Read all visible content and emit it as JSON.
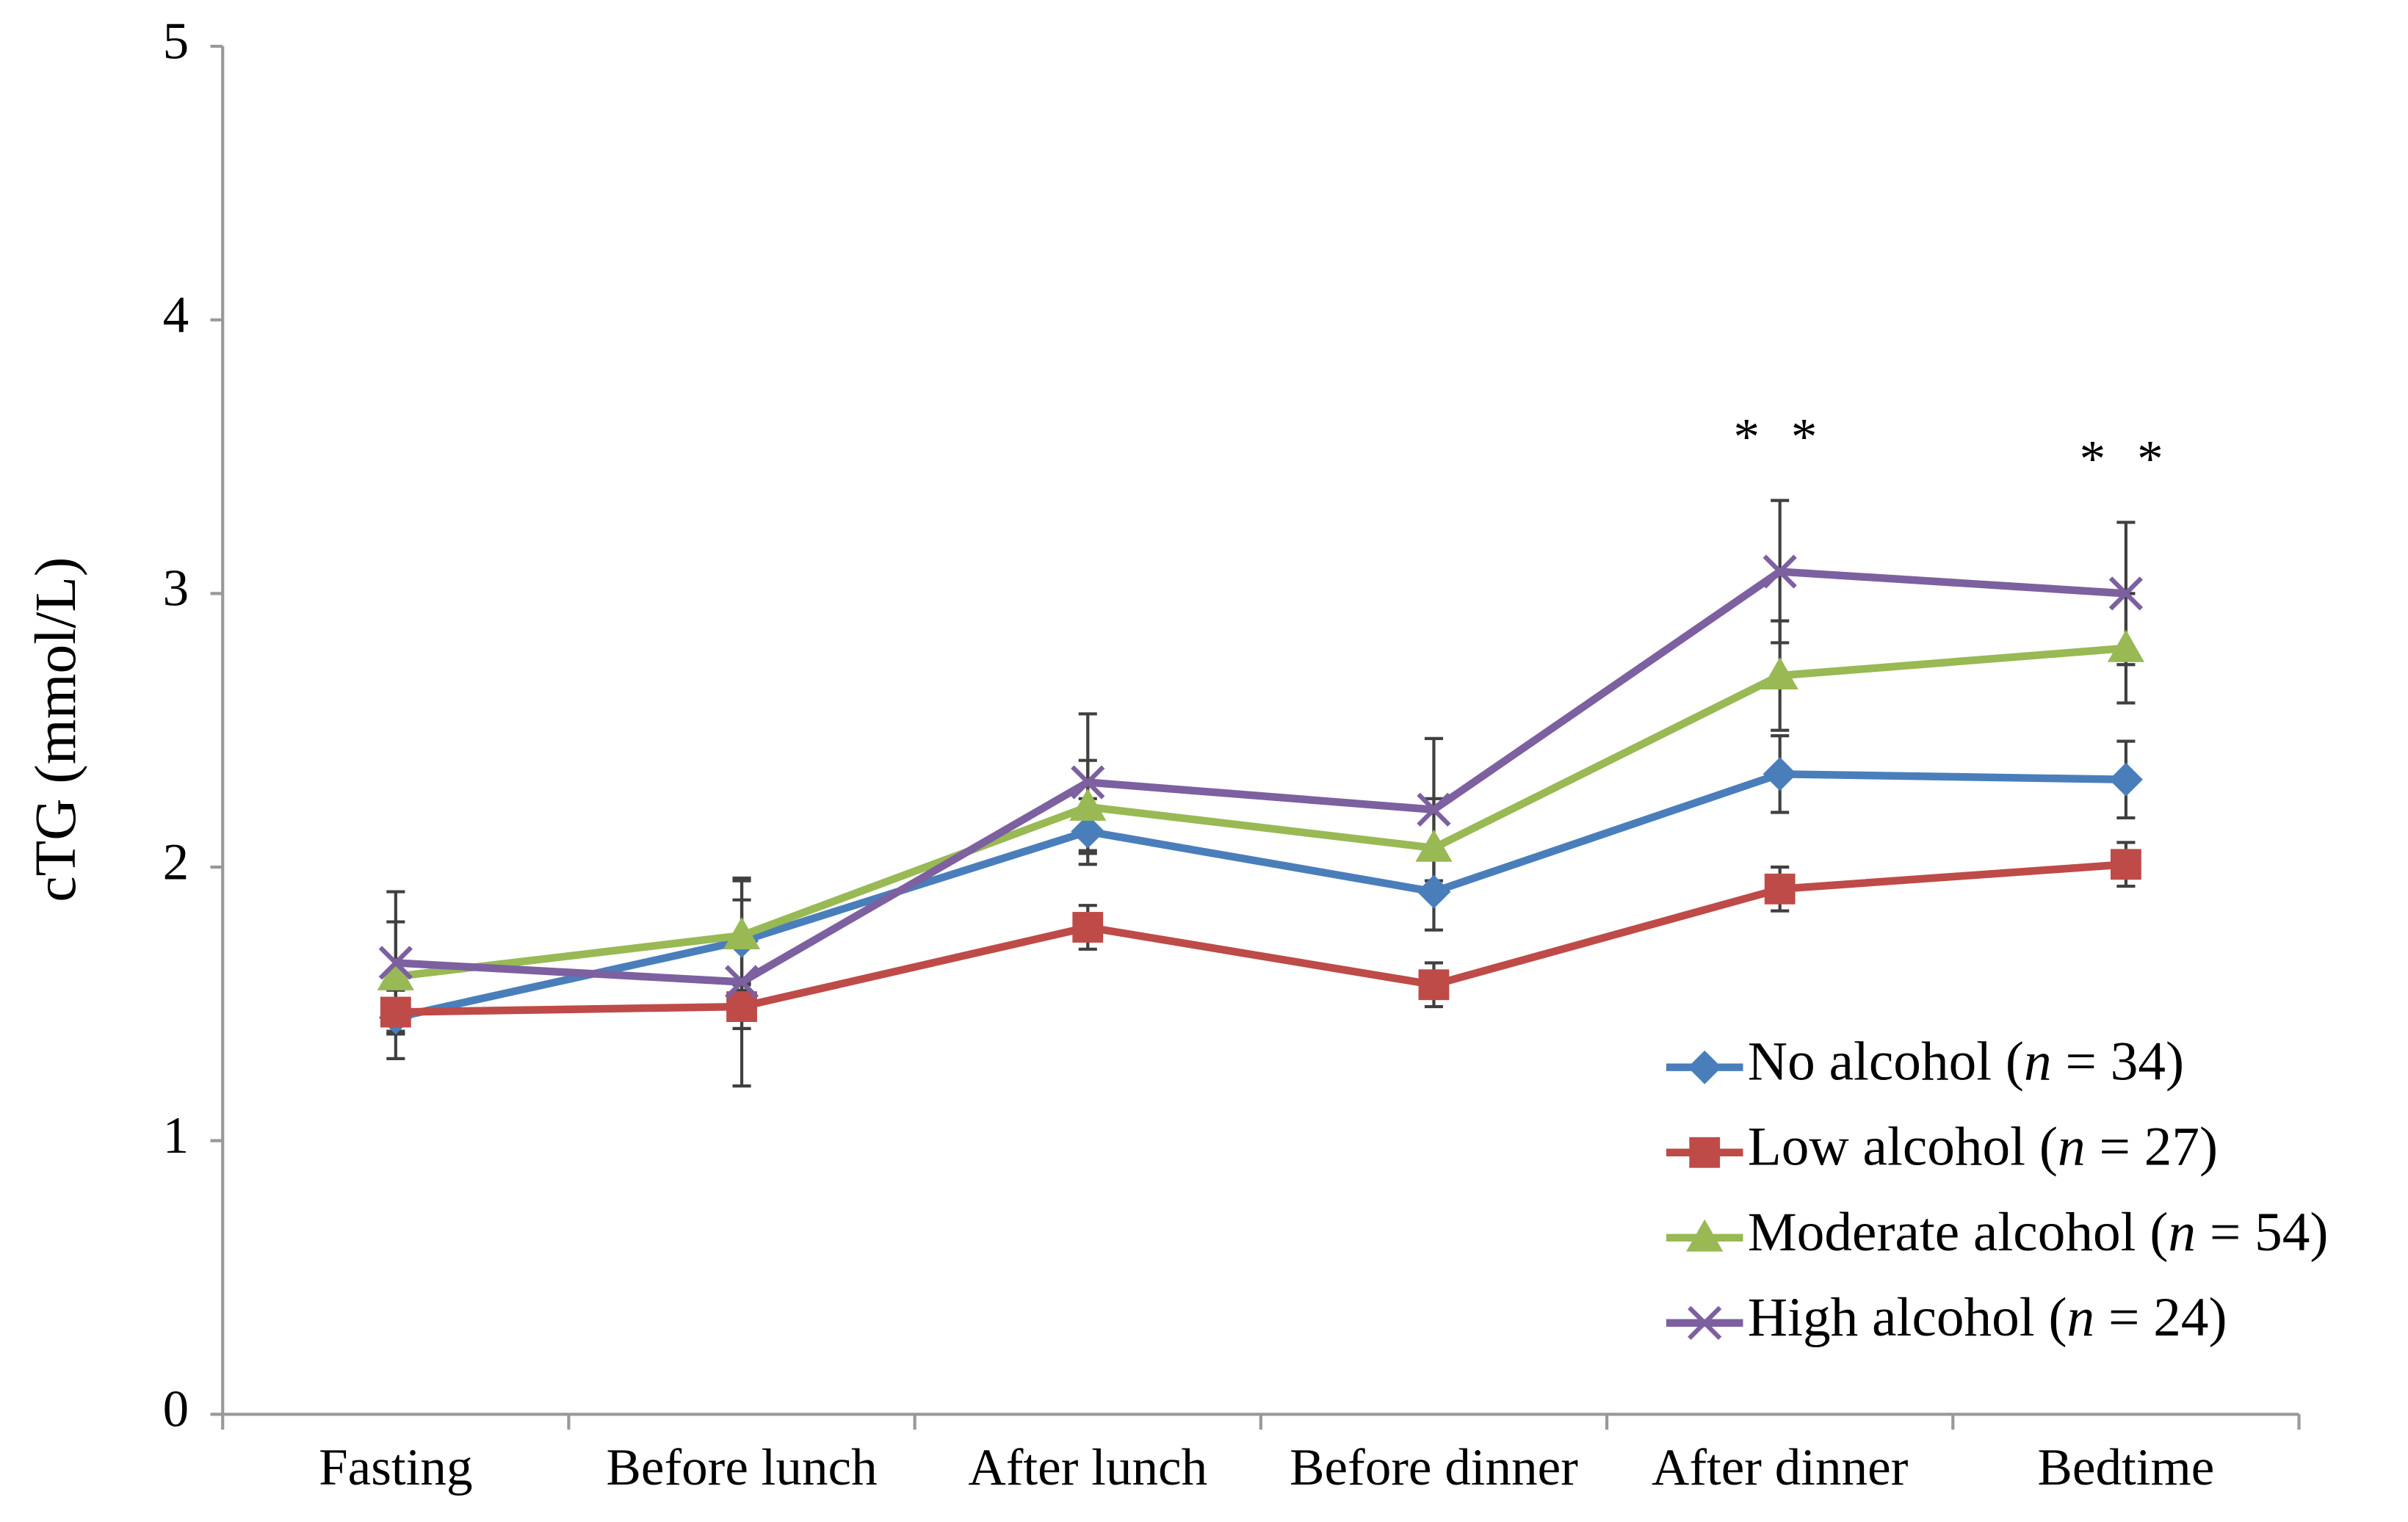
{
  "chart_data": {
    "type": "line",
    "y_label": "cTG (mmol/L)",
    "categories": [
      "Fasting",
      "Before lunch",
      "After lunch",
      "Before dinner",
      "After dinner",
      "Bedtime"
    ],
    "series": [
      {
        "name": "No alcohol (n = 34)",
        "color": "#4a7ebb",
        "marker": "diamond",
        "values": [
          1.45,
          1.73,
          2.13,
          1.91,
          2.34,
          2.32
        ],
        "errors": [
          0.15,
          0.15,
          0.12,
          0.14,
          0.14,
          0.14
        ]
      },
      {
        "name": "Low alcohol (n = 27)",
        "color": "#be4b48",
        "marker": "square",
        "values": [
          1.47,
          1.49,
          1.78,
          1.57,
          1.92,
          2.01
        ],
        "errors": [
          0.08,
          0.08,
          0.08,
          0.08,
          0.08,
          0.08
        ]
      },
      {
        "name": "Moderate alcohol (n = 54)",
        "color": "#98b954",
        "marker": "triangle",
        "values": [
          1.6,
          1.75,
          2.22,
          2.07,
          2.7,
          2.8
        ],
        "errors": [
          0.2,
          0.2,
          0.17,
          0.18,
          0.2,
          0.2
        ]
      },
      {
        "name": "High alcohol (n = 24)",
        "color": "#7d60a0",
        "marker": "x",
        "values": [
          1.65,
          1.58,
          2.31,
          2.21,
          3.08,
          3.0
        ],
        "errors": [
          0.26,
          0.38,
          0.25,
          0.26,
          0.26,
          0.26
        ]
      }
    ],
    "annotations": [
      {
        "text": "* *",
        "x": "After dinner"
      },
      {
        "text": "* *",
        "x": "Bedtime"
      }
    ],
    "ylim": [
      0,
      5
    ],
    "yticks": [
      0,
      1,
      2,
      3,
      4,
      5
    ],
    "grid": false,
    "legend": "lower right",
    "error_bar_color": "#404040"
  }
}
